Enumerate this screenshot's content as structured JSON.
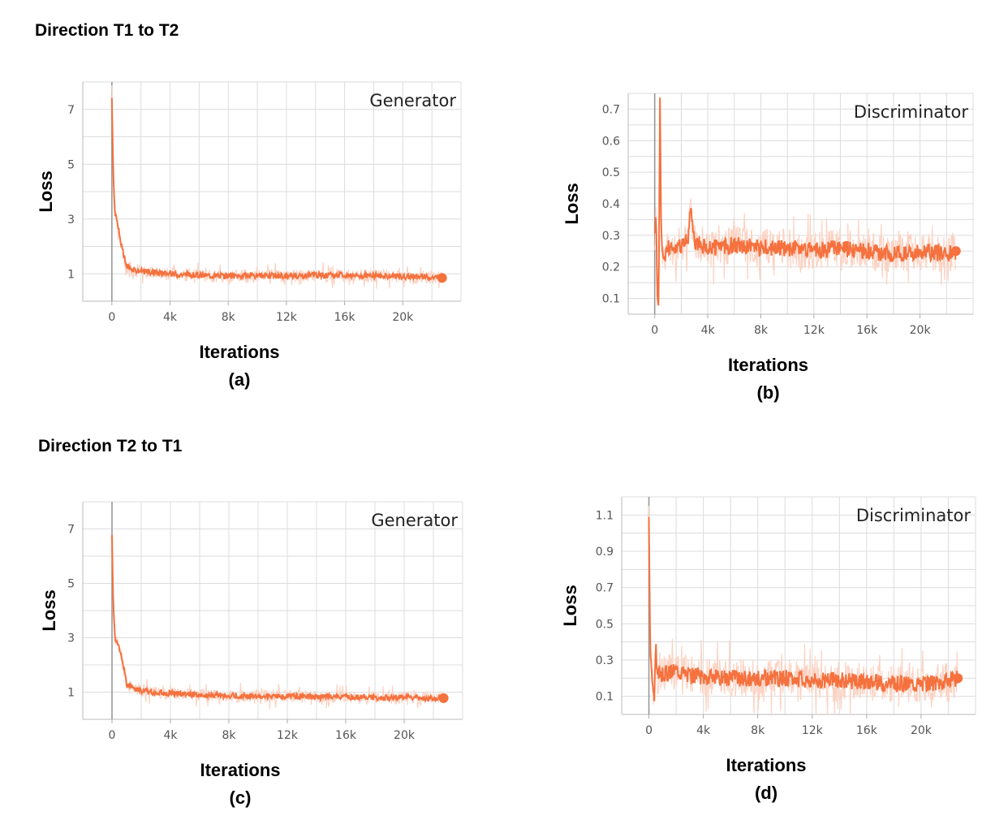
{
  "sections": [
    {
      "title": "Direction T1 to T2"
    },
    {
      "title": "Direction T2 to T1"
    }
  ],
  "colors": {
    "line": "#f5713e",
    "smooth_bg": "#fbd3c3",
    "grid": "#dcdcdc",
    "axis_zero": "#999999"
  },
  "chart_data": [
    {
      "type": "line",
      "panel_label": "(a)",
      "title": "Generator",
      "xlabel": "Iterations",
      "ylabel": "Loss",
      "xlim": [
        -2000,
        24000
      ],
      "ylim": [
        0,
        8
      ],
      "xticks": [
        0,
        4000,
        8000,
        12000,
        16000,
        20000
      ],
      "xtick_labels": [
        "0",
        "4k",
        "8k",
        "12k",
        "16k",
        "20k"
      ],
      "yticks": [
        1,
        3,
        5,
        7
      ],
      "ytick_labels": [
        "1",
        "3",
        "5",
        "7"
      ],
      "series": [
        {
          "name": "Generator loss",
          "x": [
            0,
            100,
            200,
            400,
            700,
            1000,
            1500,
            2000,
            3000,
            4000,
            6000,
            8000,
            10000,
            12000,
            14000,
            16000,
            18000,
            20000,
            22000,
            22700
          ],
          "y": [
            7.5,
            4.5,
            3.3,
            2.8,
            1.9,
            1.3,
            1.15,
            1.1,
            1.05,
            1.0,
            0.95,
            0.92,
            0.93,
            0.92,
            0.95,
            0.95,
            0.93,
            0.9,
            0.88,
            0.85
          ]
        }
      ]
    },
    {
      "type": "line",
      "panel_label": "(b)",
      "title": "Discriminator",
      "xlabel": "Iterations",
      "ylabel": "Loss",
      "xlim": [
        -2000,
        24000
      ],
      "ylim": [
        0.05,
        0.75
      ],
      "xticks": [
        0,
        4000,
        8000,
        12000,
        16000,
        20000
      ],
      "xtick_labels": [
        "0",
        "4k",
        "8k",
        "12k",
        "16k",
        "20k"
      ],
      "yticks": [
        0.1,
        0.2,
        0.3,
        0.4,
        0.5,
        0.6,
        0.7
      ],
      "ytick_labels": [
        "0.1",
        "0.2",
        "0.3",
        "0.4",
        "0.5",
        "0.6",
        "0.7"
      ],
      "series": [
        {
          "name": "Discriminator loss",
          "x": [
            0,
            100,
            200,
            300,
            400,
            500,
            700,
            1000,
            1500,
            2000,
            2500,
            2700,
            3000,
            4000,
            6000,
            8000,
            10000,
            12000,
            14000,
            16000,
            18000,
            20000,
            22000,
            22700
          ],
          "y": [
            0.3,
            0.37,
            0.12,
            0.1,
            0.72,
            0.28,
            0.22,
            0.26,
            0.26,
            0.27,
            0.28,
            0.38,
            0.28,
            0.26,
            0.27,
            0.26,
            0.26,
            0.25,
            0.26,
            0.25,
            0.24,
            0.25,
            0.24,
            0.25
          ]
        }
      ]
    },
    {
      "type": "line",
      "panel_label": "(c)",
      "title": "Generator",
      "xlabel": "Iterations",
      "ylabel": "Loss",
      "xlim": [
        -2000,
        24000
      ],
      "ylim": [
        0,
        8
      ],
      "xticks": [
        0,
        4000,
        8000,
        12000,
        16000,
        20000
      ],
      "xtick_labels": [
        "0",
        "4k",
        "8k",
        "12k",
        "16k",
        "20k"
      ],
      "yticks": [
        1,
        3,
        5,
        7
      ],
      "ytick_labels": [
        "1",
        "3",
        "5",
        "7"
      ],
      "series": [
        {
          "name": "Generator loss",
          "x": [
            0,
            100,
            200,
            400,
            700,
            1000,
            1500,
            2000,
            3000,
            4000,
            6000,
            8000,
            10000,
            12000,
            14000,
            16000,
            18000,
            20000,
            22000,
            22700
          ],
          "y": [
            6.8,
            4.0,
            3.0,
            2.8,
            2.2,
            1.3,
            1.15,
            1.05,
            0.98,
            0.95,
            0.9,
            0.87,
            0.85,
            0.85,
            0.83,
            0.82,
            0.8,
            0.8,
            0.78,
            0.78
          ]
        }
      ]
    },
    {
      "type": "line",
      "panel_label": "(d)",
      "title": "Discriminator",
      "xlabel": "Iterations",
      "ylabel": "Loss",
      "xlim": [
        -2000,
        24000
      ],
      "ylim": [
        0.0,
        1.2
      ],
      "xticks": [
        0,
        4000,
        8000,
        12000,
        16000,
        20000
      ],
      "xtick_labels": [
        "0",
        "4k",
        "8k",
        "12k",
        "16k",
        "20k"
      ],
      "yticks": [
        0.1,
        0.3,
        0.5,
        0.7,
        0.9,
        1.1
      ],
      "ytick_labels": [
        "0.1",
        "0.3",
        "0.5",
        "0.7",
        "0.9",
        "1.1"
      ],
      "series": [
        {
          "name": "Discriminator loss",
          "x": [
            0,
            100,
            200,
            400,
            500,
            600,
            800,
            1000,
            2000,
            3000,
            4000,
            6000,
            8000,
            10000,
            12000,
            14000,
            16000,
            18000,
            20000,
            22000,
            22700
          ],
          "y": [
            1.13,
            0.35,
            0.25,
            0.06,
            0.42,
            0.2,
            0.25,
            0.22,
            0.25,
            0.22,
            0.21,
            0.2,
            0.2,
            0.2,
            0.19,
            0.19,
            0.18,
            0.17,
            0.17,
            0.18,
            0.2
          ]
        }
      ]
    }
  ]
}
